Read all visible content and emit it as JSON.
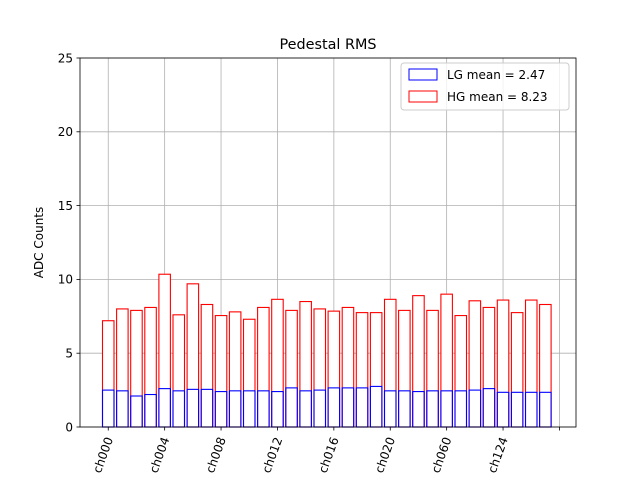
{
  "chart_data": {
    "type": "bar",
    "title": "Pedestal RMS",
    "xlabel": "",
    "ylabel": "ADC Counts",
    "ylim": [
      0,
      25
    ],
    "yticks": [
      0,
      5,
      10,
      15,
      20,
      25
    ],
    "xtick_labels": [
      "ch000",
      "ch004",
      "ch008",
      "ch012",
      "ch016",
      "ch020",
      "ch060",
      "ch124"
    ],
    "xtick_every": 4,
    "grid": true,
    "legend_position": "top-right",
    "series": [
      {
        "name": "LG mean = 2.47",
        "color": "#0000ff",
        "values": [
          2.5,
          2.45,
          2.1,
          2.2,
          2.6,
          2.45,
          2.55,
          2.55,
          2.4,
          2.45,
          2.45,
          2.45,
          2.4,
          2.65,
          2.45,
          2.5,
          2.65,
          2.65,
          2.65,
          2.75,
          2.45,
          2.45,
          2.4,
          2.45,
          2.45,
          2.45,
          2.5,
          2.6,
          2.35,
          2.35,
          2.35,
          2.35
        ]
      },
      {
        "name": "HG mean = 8.23",
        "color": "#ff0000",
        "values": [
          7.2,
          8.0,
          7.9,
          8.1,
          10.35,
          7.6,
          9.7,
          8.3,
          7.55,
          7.8,
          7.3,
          8.1,
          8.65,
          7.9,
          8.5,
          8.0,
          7.85,
          8.1,
          7.75,
          7.75,
          8.65,
          7.9,
          8.9,
          7.9,
          9.0,
          7.55,
          8.55,
          8.1,
          8.6,
          7.75,
          8.6,
          8.3
        ]
      }
    ]
  }
}
